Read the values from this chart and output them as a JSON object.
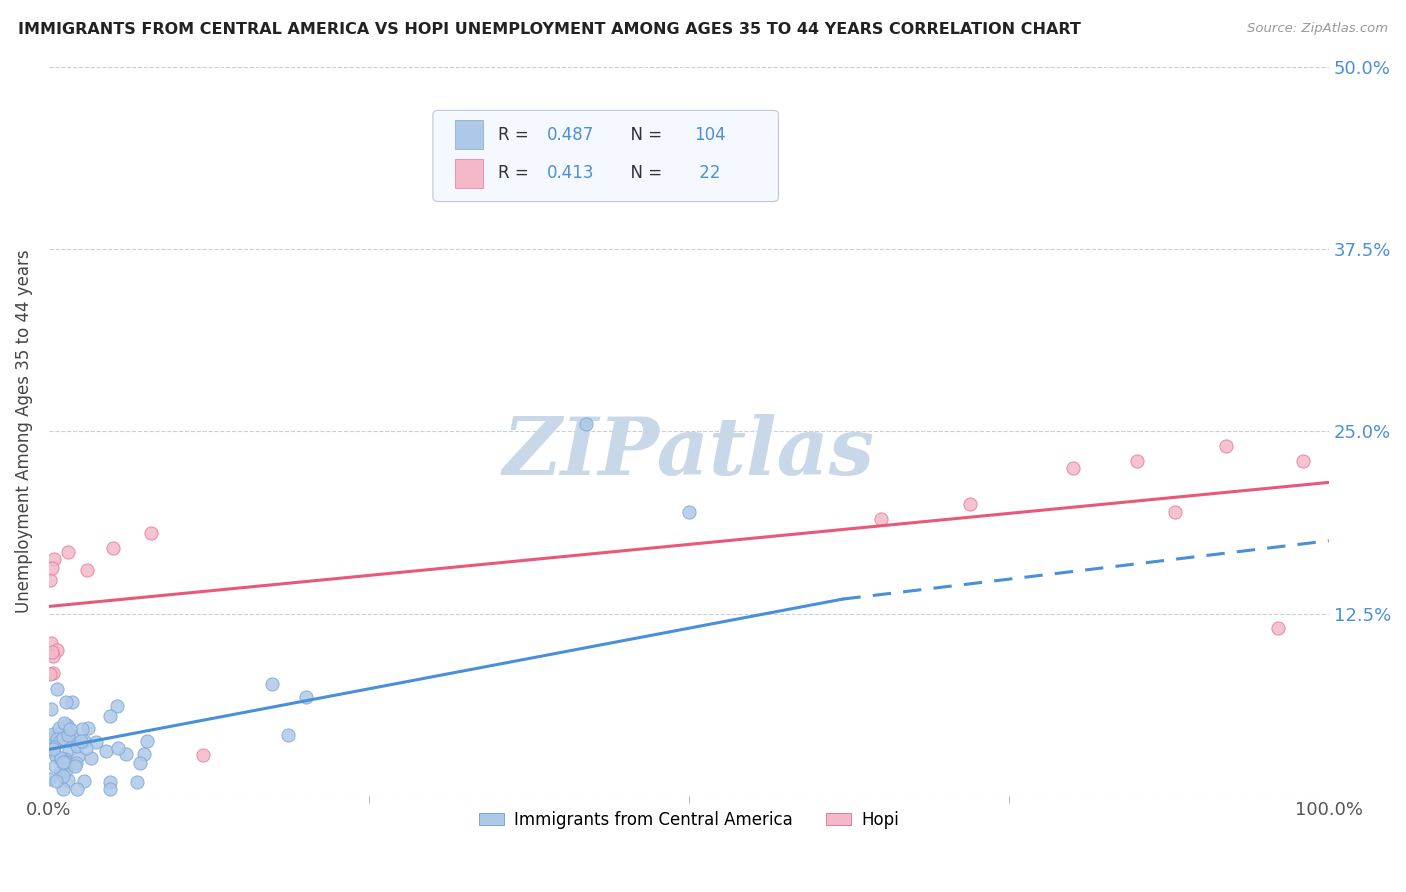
{
  "title": "IMMIGRANTS FROM CENTRAL AMERICA VS HOPI UNEMPLOYMENT AMONG AGES 35 TO 44 YEARS CORRELATION CHART",
  "source": "Source: ZipAtlas.com",
  "ylabel": "Unemployment Among Ages 35 to 44 years",
  "xlim": [
    0,
    1.0
  ],
  "ylim": [
    0.0,
    0.5
  ],
  "xticklabels_left": "0.0%",
  "xticklabels_right": "100.0%",
  "ytick_positions": [
    0.0,
    0.125,
    0.25,
    0.375,
    0.5
  ],
  "ytick_labels": [
    "",
    "12.5%",
    "25.0%",
    "37.5%",
    "50.0%"
  ],
  "blue_color": "#aec8e8",
  "blue_edge_color": "#7ba7d4",
  "pink_color": "#f4b8c8",
  "pink_edge_color": "#e8789a",
  "blue_line_color": "#4a90d9",
  "pink_line_color": "#e8587a",
  "R_blue": "0.487",
  "N_blue": "104",
  "R_pink": "0.413",
  "N_pink": " 22",
  "legend_label_blue": "Immigrants from Central America",
  "legend_label_pink": "Hopi",
  "blue_trend_x0": 0.0,
  "blue_trend_x1": 0.62,
  "blue_trend_y0": 0.032,
  "blue_trend_y1": 0.135,
  "blue_trend_dash_x0": 0.62,
  "blue_trend_dash_x1": 1.0,
  "blue_trend_dash_y0": 0.135,
  "blue_trend_dash_y1": 0.175,
  "pink_trend_x0": 0.0,
  "pink_trend_x1": 1.0,
  "pink_trend_y0": 0.13,
  "pink_trend_y1": 0.215,
  "watermark": "ZIPatlas",
  "watermark_color": "#c8d8e8",
  "background_color": "#ffffff",
  "grid_color": "#c8d0d8",
  "title_color": "#222222",
  "axis_label_color": "#444444",
  "tick_label_color_y_right": "#4a90d9",
  "tick_label_color_x": "#555555"
}
